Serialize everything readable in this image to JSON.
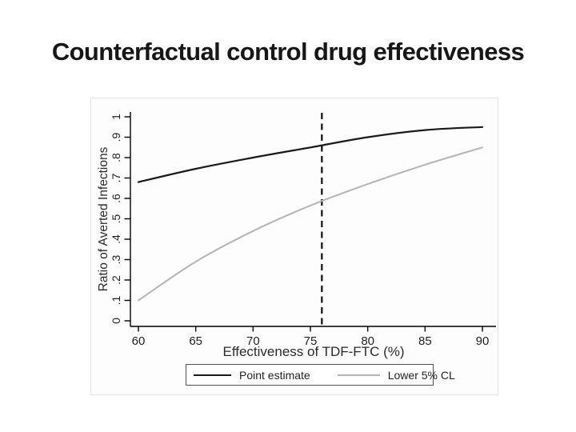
{
  "slide": {
    "title": "Counterfactual control drug effectiveness"
  },
  "chart_data": {
    "type": "line",
    "title": "",
    "xlabel": "Effectiveness of TDF-FTC (%)",
    "ylabel": "Ratio of Averted Infections",
    "xlim": [
      60,
      90
    ],
    "ylim": [
      0,
      1
    ],
    "grid": false,
    "x": [
      60,
      65,
      70,
      75,
      80,
      85,
      90
    ],
    "xtick_labels": [
      "60",
      "65",
      "70",
      "75",
      "80",
      "85",
      "90"
    ],
    "ytick_values": [
      0,
      0.1,
      0.2,
      0.3,
      0.4,
      0.5,
      0.6,
      0.7,
      0.8,
      0.9,
      1
    ],
    "ytick_labels": [
      "0",
      ".1",
      ".2",
      ".3",
      ".4",
      ".5",
      ".6",
      ".7",
      ".8",
      ".9",
      "1"
    ],
    "series": [
      {
        "name": "Point estimate",
        "color": "#1a1a1a",
        "stroke_width": 2.2,
        "values": [
          0.68,
          0.745,
          0.8,
          0.85,
          0.9,
          0.935,
          0.95
        ]
      },
      {
        "name": "Lower 5% CL",
        "color": "#b4b4b4",
        "stroke_width": 2,
        "values": [
          0.1,
          0.29,
          0.44,
          0.565,
          0.67,
          0.765,
          0.85
        ]
      }
    ],
    "reference_line": {
      "x": 76,
      "style": "dashed",
      "color": "#0d0d0d"
    },
    "legend": {
      "position": "bottom-center",
      "border": true
    },
    "axis_color": "#000000",
    "tick_label_color": "#1f1f1f",
    "axis_title_color": "#2a2a2a"
  }
}
